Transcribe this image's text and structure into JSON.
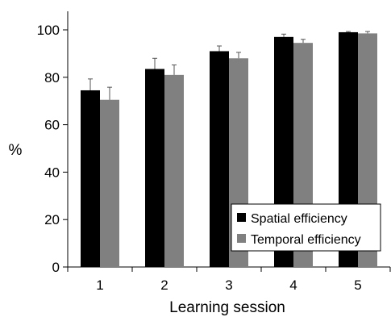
{
  "chart_data": {
    "type": "bar",
    "title": "",
    "xlabel": "Learning session",
    "ylabel": "%",
    "categories": [
      "1",
      "2",
      "3",
      "4",
      "5"
    ],
    "ylim": [
      0,
      100
    ],
    "yticks": [
      "0",
      "20",
      "40",
      "60",
      "80",
      "100"
    ],
    "series": [
      {
        "name": "Spatial efficiency",
        "color": "#000000",
        "values": [
          74.5,
          83.5,
          91,
          97,
          99
        ],
        "errors": [
          4.8,
          4.5,
          2.2,
          1.2,
          0.3
        ]
      },
      {
        "name": "Temporal efficiency",
        "color": "#808080",
        "values": [
          70.5,
          81,
          88,
          94.5,
          98.5
        ],
        "errors": [
          5.3,
          4.2,
          2.5,
          1.5,
          0.8
        ]
      }
    ],
    "legend": {
      "placement": "bottom-right",
      "boxed": true
    },
    "grid": false,
    "error_bars": "upper"
  }
}
